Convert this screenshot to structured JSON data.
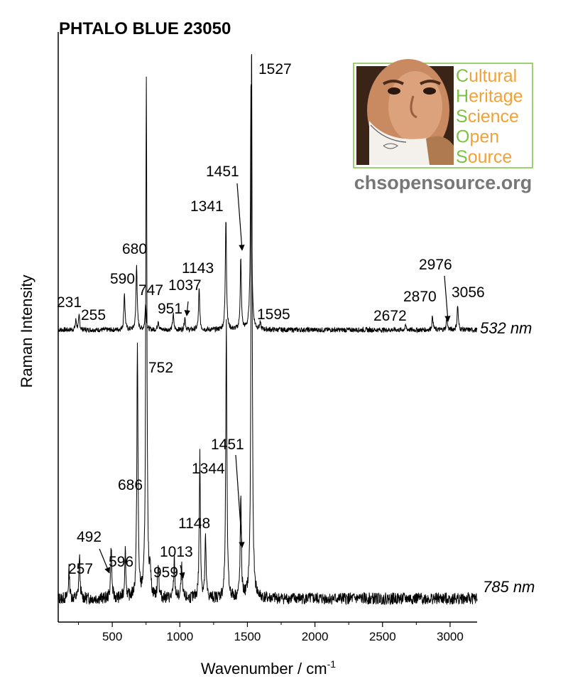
{
  "chart_data": {
    "type": "line",
    "title": "PHTALO BLUE 23050",
    "xlabel": "Wavenumber / cm",
    "xlabel_superscript": "-1",
    "ylabel": "Raman Intensity",
    "xlim": [
      100,
      3200
    ],
    "xticks": [
      500,
      1000,
      1500,
      2000,
      2500,
      3000
    ],
    "grid": false,
    "series": [
      {
        "name": "532 nm",
        "peaks": [
          {
            "x": 231,
            "h": 0.1,
            "label": "231"
          },
          {
            "x": 255,
            "h": 0.14,
            "label": "255"
          },
          {
            "x": 590,
            "h": 0.38,
            "label": "590"
          },
          {
            "x": 680,
            "h": 0.68,
            "label": "680"
          },
          {
            "x": 747,
            "h": 0.28,
            "label": "747"
          },
          {
            "x": 840,
            "h": 0.1
          },
          {
            "x": 951,
            "h": 0.16,
            "label": "951"
          },
          {
            "x": 1037,
            "h": 0.13,
            "label": "1037"
          },
          {
            "x": 1143,
            "h": 0.42,
            "label": "1143"
          },
          {
            "x": 1341,
            "h": 1.15,
            "label": "1341"
          },
          {
            "x": 1451,
            "h": 0.72,
            "label": "1451"
          },
          {
            "x": 1527,
            "h": 2.6,
            "label": "1527"
          },
          {
            "x": 1595,
            "h": 0.06,
            "label": "1595"
          },
          {
            "x": 2672,
            "h": 0.04,
            "label": "2672"
          },
          {
            "x": 2870,
            "h": 0.14,
            "label": "2870"
          },
          {
            "x": 2976,
            "h": 0.12,
            "label": "2976"
          },
          {
            "x": 3056,
            "h": 0.25,
            "label": "3056"
          }
        ]
      },
      {
        "name": "785 nm",
        "peaks": [
          {
            "x": 180,
            "h": 0.12
          },
          {
            "x": 257,
            "h": 0.18,
            "label": "257"
          },
          {
            "x": 492,
            "h": 0.22,
            "label": "492"
          },
          {
            "x": 596,
            "h": 0.2,
            "label": "596"
          },
          {
            "x": 686,
            "h": 1.05,
            "label": "686"
          },
          {
            "x": 752,
            "h": 2.15,
            "label": "752"
          },
          {
            "x": 780,
            "h": 0.12
          },
          {
            "x": 840,
            "h": 0.15
          },
          {
            "x": 959,
            "h": 0.16,
            "label": "959"
          },
          {
            "x": 1013,
            "h": 0.13,
            "label": "1013"
          },
          {
            "x": 1148,
            "h": 0.6,
            "label": "1148"
          },
          {
            "x": 1190,
            "h": 0.25
          },
          {
            "x": 1344,
            "h": 1.15,
            "label": "1344"
          },
          {
            "x": 1451,
            "h": 0.42,
            "label": "1451"
          },
          {
            "x": 1531,
            "h": 2.35
          }
        ]
      }
    ]
  },
  "logo": {
    "lines": [
      "Cultural",
      "Heritage",
      "Science",
      "Open",
      "Source"
    ],
    "url": "chsopensource.org",
    "colors": {
      "green": "#7cc142",
      "orange": "#f0a23a",
      "gray": "#777777"
    }
  }
}
